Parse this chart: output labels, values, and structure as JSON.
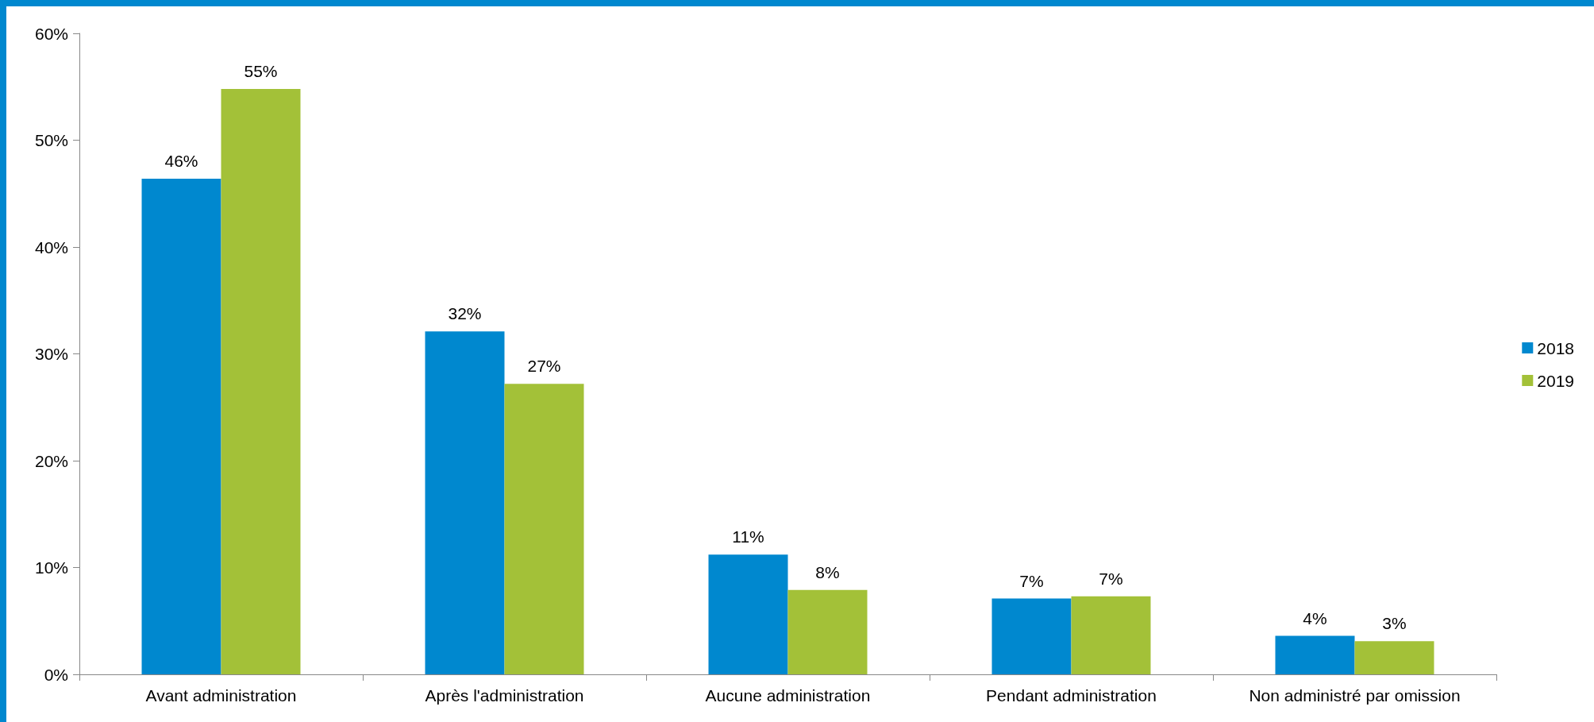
{
  "chart_data": {
    "type": "bar",
    "categories": [
      "Avant administration",
      "Après l'administration",
      "Aucune administration",
      "Pendant administration",
      "Non administré par omission"
    ],
    "series": [
      {
        "name": "2018",
        "color": "#0088cf",
        "values": [
          46.4,
          32.1,
          11.2,
          7.1,
          3.6
        ],
        "value_labels": [
          "46%",
          "32%",
          "11%",
          "7%",
          "4%"
        ]
      },
      {
        "name": "2019",
        "color": "#a3c138",
        "values": [
          54.8,
          27.2,
          7.9,
          7.3,
          3.1
        ],
        "value_labels": [
          "55%",
          "27%",
          "8%",
          "7%",
          "3%"
        ]
      }
    ],
    "ylim": [
      0,
      60
    ],
    "yticks": [
      {
        "value": 0,
        "label": "0%"
      },
      {
        "value": 10,
        "label": "10%"
      },
      {
        "value": 20,
        "label": "20%"
      },
      {
        "value": 30,
        "label": "30%"
      },
      {
        "value": 40,
        "label": "40%"
      },
      {
        "value": 50,
        "label": "50%"
      },
      {
        "value": 60,
        "label": "60%"
      }
    ],
    "grid": false,
    "legend": "right"
  }
}
